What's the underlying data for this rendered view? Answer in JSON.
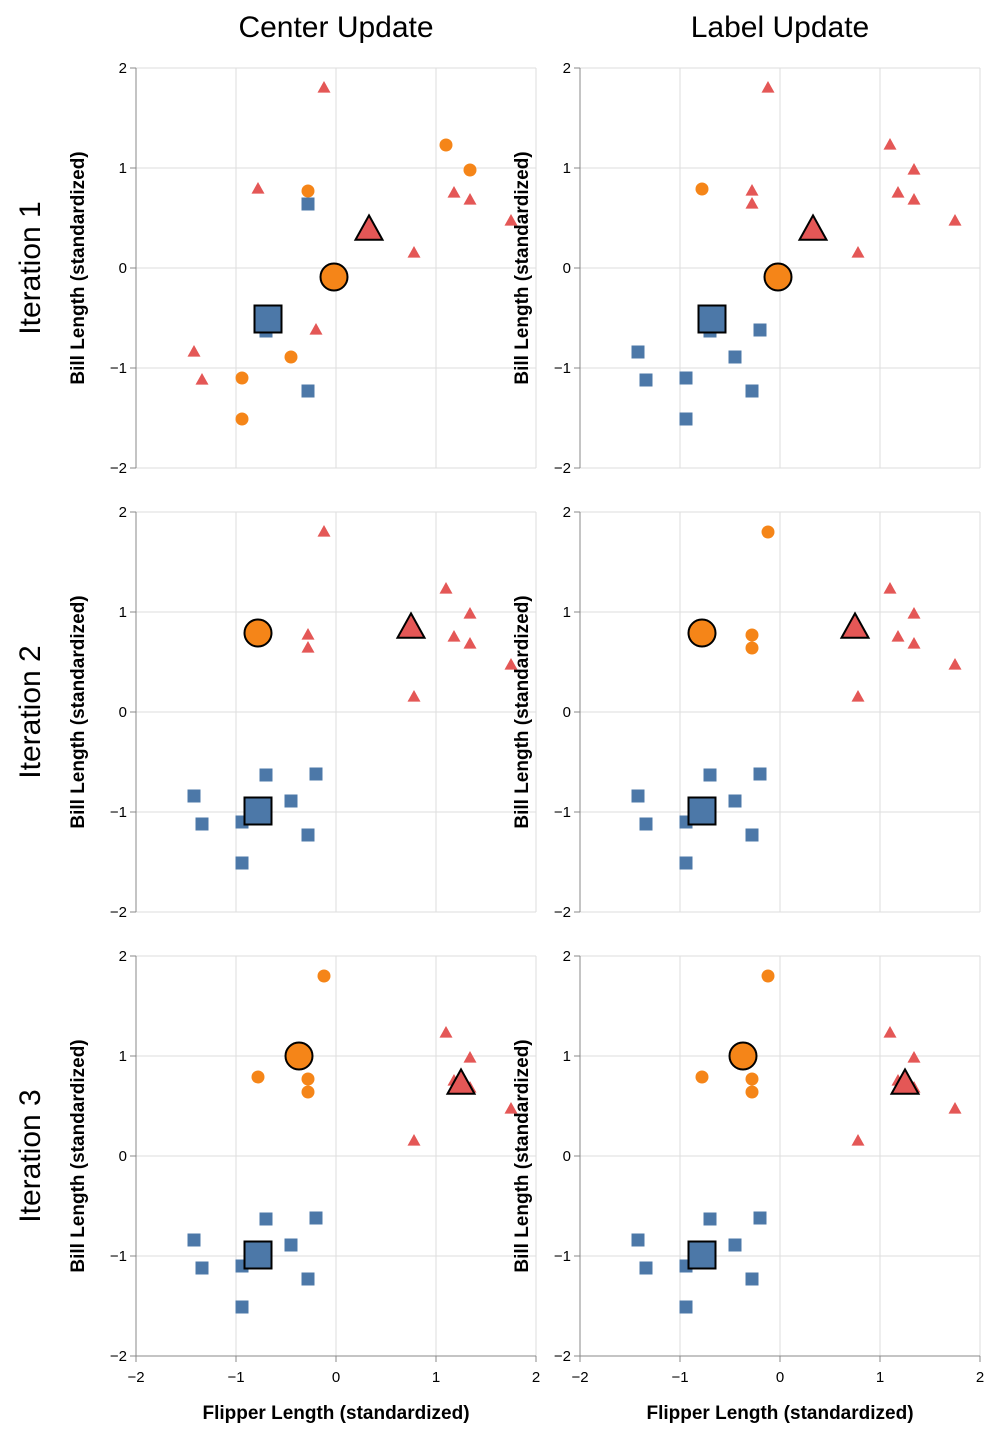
{
  "column_titles": [
    "Center Update",
    "Label Update"
  ],
  "row_titles": [
    "Iteration 1",
    "Iteration 2",
    "Iteration 3"
  ],
  "x_axis_title": "Flipper Length (standardized)",
  "y_axis_title": "Bill Length (standardized)",
  "colors": {
    "cluster_blue": "#4c78a8",
    "cluster_orange": "#f58518",
    "cluster_red": "#e45756",
    "grid": "#dddddd",
    "axis": "#888888"
  },
  "chart_data": {
    "type": "scatter",
    "xlim": [
      -2,
      2
    ],
    "ylim": [
      -2,
      2
    ],
    "x_ticks": [
      "−2",
      "−1",
      "0",
      "1",
      "2"
    ],
    "y_ticks": [
      "2",
      "1",
      "0",
      "−1",
      "−2"
    ],
    "grid": true,
    "marker_shapes": {
      "blue": "square",
      "orange": "circle",
      "red": "triangle"
    },
    "points": [
      {
        "x": -1.42,
        "y": -0.84
      },
      {
        "x": -1.34,
        "y": -1.12
      },
      {
        "x": -0.94,
        "y": -1.1
      },
      {
        "x": -0.94,
        "y": -1.51
      },
      {
        "x": -0.7,
        "y": -0.63
      },
      {
        "x": -0.45,
        "y": -0.89
      },
      {
        "x": -0.28,
        "y": -1.23
      },
      {
        "x": -0.2,
        "y": -0.62
      },
      {
        "x": -0.28,
        "y": 0.64
      },
      {
        "x": -0.28,
        "y": 0.77
      },
      {
        "x": -0.78,
        "y": 0.79
      },
      {
        "x": -0.12,
        "y": 1.8
      },
      {
        "x": 0.78,
        "y": 0.15
      },
      {
        "x": 1.1,
        "y": 1.23
      },
      {
        "x": 1.18,
        "y": 0.75
      },
      {
        "x": 1.34,
        "y": 0.68
      },
      {
        "x": 1.34,
        "y": 0.98
      },
      {
        "x": 1.75,
        "y": 0.47
      }
    ],
    "panels": [
      {
        "row": 0,
        "col": 0,
        "labels": [
          "red",
          "red",
          "orange",
          "orange",
          "blue",
          "orange",
          "blue",
          "red",
          "blue",
          "orange",
          "red",
          "red",
          "red",
          "orange",
          "red",
          "red",
          "orange",
          "red"
        ],
        "centers": {
          "blue": [
            -0.68,
            -0.51
          ],
          "orange": [
            -0.02,
            -0.09
          ],
          "red": [
            0.33,
            0.38
          ]
        }
      },
      {
        "row": 0,
        "col": 1,
        "labels": [
          "blue",
          "blue",
          "blue",
          "blue",
          "blue",
          "blue",
          "blue",
          "blue",
          "red",
          "red",
          "orange",
          "red",
          "red",
          "red",
          "red",
          "red",
          "red",
          "red"
        ],
        "centers": {
          "blue": [
            -0.68,
            -0.51
          ],
          "orange": [
            -0.02,
            -0.09
          ],
          "red": [
            0.33,
            0.38
          ]
        }
      },
      {
        "row": 1,
        "col": 0,
        "labels": [
          "blue",
          "blue",
          "blue",
          "blue",
          "blue",
          "blue",
          "blue",
          "blue",
          "red",
          "red",
          "orange",
          "red",
          "red",
          "red",
          "red",
          "red",
          "red",
          "red"
        ],
        "centers": {
          "blue": [
            -0.78,
            -0.99
          ],
          "orange": [
            -0.78,
            0.79
          ],
          "red": [
            0.75,
            0.84
          ]
        }
      },
      {
        "row": 1,
        "col": 1,
        "labels": [
          "blue",
          "blue",
          "blue",
          "blue",
          "blue",
          "blue",
          "blue",
          "blue",
          "orange",
          "orange",
          "orange",
          "orange",
          "red",
          "red",
          "red",
          "red",
          "red",
          "red"
        ],
        "centers": {
          "blue": [
            -0.78,
            -0.99
          ],
          "orange": [
            -0.78,
            0.79
          ],
          "red": [
            0.75,
            0.84
          ]
        }
      },
      {
        "row": 2,
        "col": 0,
        "labels": [
          "blue",
          "blue",
          "blue",
          "blue",
          "blue",
          "blue",
          "blue",
          "blue",
          "orange",
          "orange",
          "orange",
          "orange",
          "red",
          "red",
          "red",
          "red",
          "red",
          "red"
        ],
        "centers": {
          "blue": [
            -0.78,
            -0.99
          ],
          "orange": [
            -0.37,
            1.0
          ],
          "red": [
            1.25,
            0.72
          ]
        }
      },
      {
        "row": 2,
        "col": 1,
        "labels": [
          "blue",
          "blue",
          "blue",
          "blue",
          "blue",
          "blue",
          "blue",
          "blue",
          "orange",
          "orange",
          "orange",
          "orange",
          "red",
          "red",
          "red",
          "red",
          "red",
          "red"
        ],
        "centers": {
          "blue": [
            -0.78,
            -0.99
          ],
          "orange": [
            -0.37,
            1.0
          ],
          "red": [
            1.25,
            0.72
          ]
        }
      }
    ]
  }
}
